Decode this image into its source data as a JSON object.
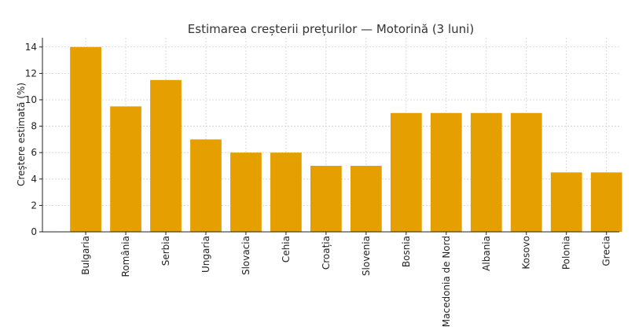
{
  "chart_data": {
    "type": "bar",
    "title": "Estimarea creșterii prețurilor — Motorină (3 luni)",
    "xlabel": "",
    "ylabel": "Creștere estimată (%)",
    "categories": [
      "Bulgaria",
      "România",
      "Serbia",
      "Ungaria",
      "Slovacia",
      "Cehia",
      "Croația",
      "Slovenia",
      "Bosnia",
      "Macedonia de Nord",
      "Albania",
      "Kosovo",
      "Polonia",
      "Grecia"
    ],
    "values": [
      14,
      9.5,
      11.5,
      7,
      6,
      6,
      5,
      5,
      9,
      9,
      9,
      9,
      4.5,
      4.5
    ],
    "ylim": [
      0,
      14.7
    ],
    "yticks": [
      0,
      2,
      4,
      6,
      8,
      10,
      12,
      14
    ],
    "grid": true,
    "bar_color": "#E5A000"
  }
}
